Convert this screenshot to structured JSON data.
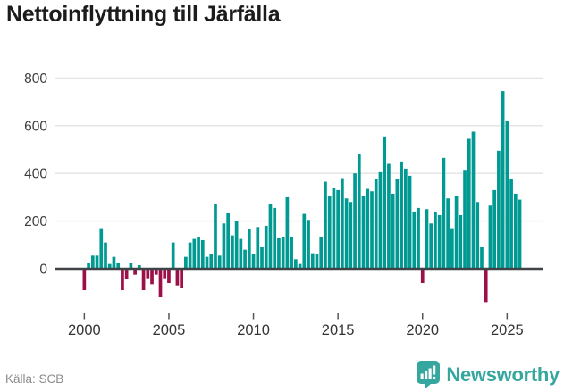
{
  "title": "Nettoinflyttning till Järfälla",
  "source": "Källa: SCB",
  "brand": {
    "name": "Newsworthy",
    "color": "#35a79f"
  },
  "colors": {
    "positive": "#009a93",
    "negative": "#9b1048",
    "axis": "#3f4246",
    "grid": "#e3e3e3",
    "tick_text": "#3c3c3c",
    "muted_text": "#8b8b8b",
    "title_text": "#1c1c1c"
  },
  "chart_data": {
    "type": "bar",
    "title": "Nettoinflyttning till Järfälla",
    "xlabel": "",
    "ylabel": "",
    "x_period": "quarterly",
    "x_start": "2000-Q1",
    "x_end": "2025-Q4",
    "ylim": [
      -150,
      800
    ],
    "yticks": [
      0,
      200,
      400,
      600,
      800
    ],
    "xticks": [
      "2000",
      "2005",
      "2010",
      "2015",
      "2020",
      "2025"
    ],
    "grid": true,
    "legend": false,
    "positive_color": "#009a93",
    "negative_color": "#9b1048",
    "source": "SCB",
    "values": [
      -90,
      25,
      55,
      55,
      170,
      110,
      20,
      50,
      25,
      -90,
      -45,
      25,
      -25,
      15,
      -90,
      -40,
      -65,
      -25,
      -120,
      -40,
      -60,
      110,
      -70,
      -80,
      50,
      110,
      125,
      135,
      120,
      50,
      60,
      270,
      55,
      190,
      235,
      140,
      200,
      125,
      80,
      165,
      60,
      175,
      90,
      180,
      270,
      255,
      130,
      135,
      300,
      135,
      40,
      20,
      230,
      205,
      65,
      60,
      135,
      365,
      305,
      340,
      330,
      380,
      295,
      280,
      400,
      480,
      305,
      335,
      325,
      375,
      405,
      555,
      440,
      315,
      375,
      450,
      420,
      390,
      240,
      255,
      -60,
      250,
      190,
      240,
      225,
      465,
      295,
      170,
      305,
      225,
      415,
      545,
      575,
      280,
      90,
      -140,
      265,
      330,
      495,
      745,
      620,
      375,
      315,
      290
    ]
  }
}
